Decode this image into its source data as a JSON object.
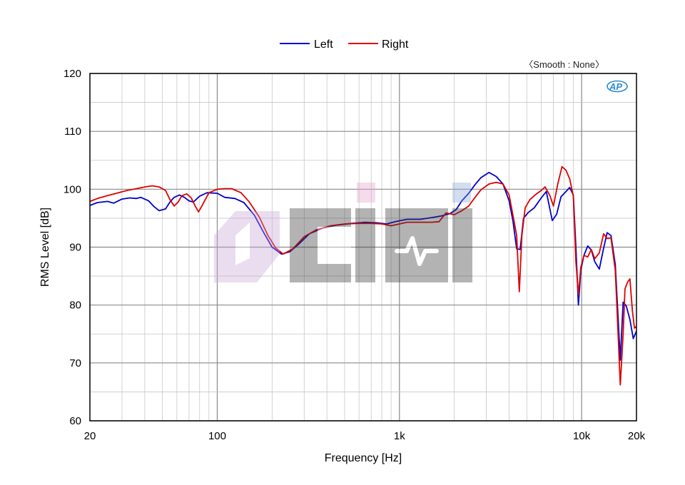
{
  "chart_data": {
    "type": "line",
    "xlabel": "Frequency [Hz]",
    "ylabel": "RMS Level [dB]",
    "x_scale": "log",
    "xlim": [
      20,
      20000
    ],
    "ylim": [
      60,
      120
    ],
    "x_ticks": [
      {
        "value": 20,
        "label": "20"
      },
      {
        "value": 100,
        "label": "100"
      },
      {
        "value": 1000,
        "label": "1k"
      },
      {
        "value": 10000,
        "label": "10k"
      },
      {
        "value": 20000,
        "label": "20k"
      }
    ],
    "y_ticks": [
      60,
      70,
      80,
      90,
      100,
      110,
      120
    ],
    "grid": true,
    "legend_position": "top-center",
    "annotation": "〈Smooth : None〉",
    "series": [
      {
        "name": "Left",
        "color": "#0000cc",
        "points": [
          [
            20,
            97.2
          ],
          [
            22,
            97.7
          ],
          [
            25,
            97.9
          ],
          [
            27,
            97.6
          ],
          [
            30,
            98.3
          ],
          [
            33,
            98.5
          ],
          [
            36,
            98.4
          ],
          [
            38,
            98.6
          ],
          [
            42,
            98.0
          ],
          [
            45,
            97.0
          ],
          [
            48,
            96.3
          ],
          [
            52,
            96.6
          ],
          [
            55,
            97.8
          ],
          [
            58,
            98.6
          ],
          [
            62,
            99.0
          ],
          [
            66,
            98.6
          ],
          [
            70,
            98.0
          ],
          [
            74,
            97.8
          ],
          [
            80,
            98.8
          ],
          [
            88,
            99.4
          ],
          [
            100,
            99.3
          ],
          [
            110,
            98.6
          ],
          [
            125,
            98.4
          ],
          [
            140,
            97.7
          ],
          [
            160,
            95.5
          ],
          [
            180,
            92.5
          ],
          [
            200,
            90.0
          ],
          [
            225,
            88.8
          ],
          [
            250,
            89.2
          ],
          [
            280,
            90.5
          ],
          [
            320,
            92.3
          ],
          [
            380,
            93.3
          ],
          [
            450,
            93.8
          ],
          [
            550,
            94.1
          ],
          [
            650,
            94.3
          ],
          [
            750,
            94.2
          ],
          [
            850,
            94.0
          ],
          [
            950,
            94.4
          ],
          [
            1100,
            94.8
          ],
          [
            1300,
            94.8
          ],
          [
            1500,
            95.1
          ],
          [
            1700,
            95.4
          ],
          [
            1900,
            95.8
          ],
          [
            2050,
            96.5
          ],
          [
            2200,
            98.0
          ],
          [
            2400,
            99.3
          ],
          [
            2600,
            100.8
          ],
          [
            2800,
            102.0
          ],
          [
            3100,
            102.9
          ],
          [
            3400,
            102.2
          ],
          [
            3700,
            100.9
          ],
          [
            4000,
            98.0
          ],
          [
            4200,
            94.5
          ],
          [
            4400,
            89.7
          ],
          [
            4600,
            89.6
          ],
          [
            4800,
            95.0
          ],
          [
            5100,
            96.0
          ],
          [
            5500,
            96.8
          ],
          [
            6000,
            98.5
          ],
          [
            6400,
            99.6
          ],
          [
            6900,
            94.6
          ],
          [
            7300,
            95.7
          ],
          [
            7700,
            98.7
          ],
          [
            8200,
            99.6
          ],
          [
            8600,
            100.3
          ],
          [
            9000,
            99.0
          ],
          [
            9300,
            90.0
          ],
          [
            9600,
            80.0
          ],
          [
            9900,
            86.0
          ],
          [
            10300,
            88.6
          ],
          [
            10800,
            90.2
          ],
          [
            11300,
            89.5
          ],
          [
            11800,
            87.5
          ],
          [
            12500,
            86.2
          ],
          [
            13200,
            89.8
          ],
          [
            13800,
            92.5
          ],
          [
            14500,
            92.0
          ],
          [
            15300,
            87.0
          ],
          [
            15900,
            77.0
          ],
          [
            16300,
            70.5
          ],
          [
            16900,
            80.5
          ],
          [
            17600,
            79.8
          ],
          [
            18400,
            77.5
          ],
          [
            19200,
            74.2
          ],
          [
            20000,
            75.5
          ]
        ]
      },
      {
        "name": "Right",
        "color": "#dd0000",
        "points": [
          [
            20,
            97.9
          ],
          [
            22,
            98.4
          ],
          [
            25,
            98.9
          ],
          [
            28,
            99.3
          ],
          [
            32,
            99.8
          ],
          [
            36,
            100.1
          ],
          [
            40,
            100.4
          ],
          [
            44,
            100.6
          ],
          [
            48,
            100.4
          ],
          [
            52,
            99.8
          ],
          [
            55,
            98.2
          ],
          [
            58,
            97.1
          ],
          [
            61,
            97.8
          ],
          [
            64,
            98.9
          ],
          [
            68,
            99.2
          ],
          [
            72,
            98.5
          ],
          [
            76,
            97.0
          ],
          [
            79,
            96.1
          ],
          [
            83,
            97.3
          ],
          [
            90,
            99.4
          ],
          [
            100,
            100.0
          ],
          [
            110,
            100.1
          ],
          [
            120,
            100.1
          ],
          [
            135,
            99.4
          ],
          [
            150,
            97.8
          ],
          [
            170,
            95.2
          ],
          [
            190,
            92.0
          ],
          [
            210,
            89.8
          ],
          [
            230,
            88.8
          ],
          [
            260,
            89.7
          ],
          [
            300,
            91.8
          ],
          [
            350,
            93.0
          ],
          [
            420,
            93.7
          ],
          [
            500,
            94.0
          ],
          [
            600,
            94.1
          ],
          [
            700,
            94.1
          ],
          [
            800,
            94.0
          ],
          [
            900,
            93.7
          ],
          [
            1000,
            94.0
          ],
          [
            1100,
            94.3
          ],
          [
            1300,
            94.3
          ],
          [
            1500,
            94.3
          ],
          [
            1650,
            94.4
          ],
          [
            1800,
            95.9
          ],
          [
            2000,
            95.6
          ],
          [
            2200,
            96.3
          ],
          [
            2400,
            97.1
          ],
          [
            2600,
            98.6
          ],
          [
            2800,
            99.9
          ],
          [
            3100,
            100.9
          ],
          [
            3400,
            101.2
          ],
          [
            3700,
            100.9
          ],
          [
            4000,
            99.0
          ],
          [
            4200,
            95.5
          ],
          [
            4400,
            92.0
          ],
          [
            4550,
            82.3
          ],
          [
            4700,
            92.0
          ],
          [
            4900,
            96.8
          ],
          [
            5200,
            98.2
          ],
          [
            5600,
            99.1
          ],
          [
            6000,
            99.8
          ],
          [
            6300,
            100.4
          ],
          [
            6700,
            98.9
          ],
          [
            7000,
            97.1
          ],
          [
            7400,
            100.9
          ],
          [
            7800,
            103.9
          ],
          [
            8200,
            103.3
          ],
          [
            8600,
            101.8
          ],
          [
            9000,
            98.8
          ],
          [
            9300,
            87.5
          ],
          [
            9600,
            81.8
          ],
          [
            9900,
            86.5
          ],
          [
            10300,
            88.6
          ],
          [
            10800,
            88.3
          ],
          [
            11300,
            89.6
          ],
          [
            11800,
            88.0
          ],
          [
            12500,
            89.0
          ],
          [
            13200,
            92.3
          ],
          [
            13800,
            91.5
          ],
          [
            14500,
            91.6
          ],
          [
            15300,
            86.0
          ],
          [
            15900,
            74.0
          ],
          [
            16300,
            66.2
          ],
          [
            16900,
            75.0
          ],
          [
            17300,
            82.8
          ],
          [
            17900,
            84.0
          ],
          [
            18400,
            84.5
          ],
          [
            19000,
            79.0
          ],
          [
            19500,
            76.0
          ],
          [
            20000,
            76.3
          ]
        ]
      }
    ]
  }
}
